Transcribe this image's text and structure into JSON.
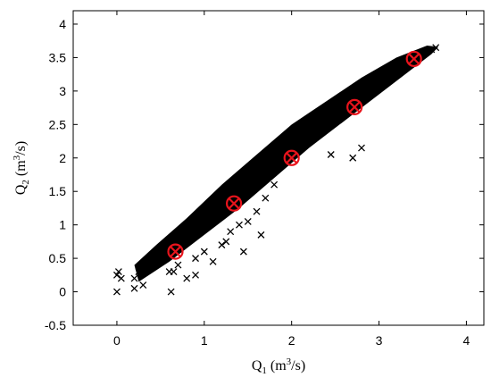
{
  "chart_data": {
    "type": "scatter",
    "title": "",
    "xlabel": {
      "main": "Q",
      "sub": "1",
      "unit_pre": " (m",
      "unit_sup": "3",
      "unit_post": "/s)"
    },
    "ylabel": {
      "main": "Q",
      "sub": "2",
      "unit_pre": " (m",
      "unit_sup": "3",
      "unit_post": "/s)"
    },
    "xlim": [
      -0.5,
      4.2
    ],
    "ylim": [
      -0.5,
      4.2
    ],
    "xticks": [
      0,
      1,
      2,
      3,
      4
    ],
    "xtick_labels": [
      "0",
      "1",
      "2",
      "3",
      "4"
    ],
    "yticks": [
      -0.5,
      0,
      0.5,
      1,
      1.5,
      2,
      2.5,
      3,
      3.5,
      4
    ],
    "ytick_labels": [
      "-0.5",
      "0",
      "0.5",
      "1",
      "1.5",
      "2",
      "2.5",
      "3",
      "3.5",
      "4"
    ],
    "grid": false,
    "legend": "none",
    "colors": {
      "cloud": "#000000",
      "highlight": "#e8141c"
    },
    "series": [
      {
        "marker": "x",
        "description_points": "dense cloud of x markers along diagonal",
        "x": [
          0.0,
          0.0,
          0.02,
          0.05,
          0.2,
          0.25,
          0.3,
          0.35,
          0.4,
          0.5,
          0.55,
          0.6,
          0.62,
          0.65,
          0.7,
          0.75,
          0.8,
          0.85,
          0.9,
          0.95,
          1.0,
          1.05,
          1.1,
          1.15,
          1.2,
          1.25,
          1.3,
          1.35,
          1.4,
          1.45,
          1.5,
          1.55,
          1.6,
          1.65,
          1.7,
          1.75,
          1.8,
          1.85,
          1.9,
          1.95,
          2.0,
          2.05,
          2.1,
          2.15,
          2.2,
          2.3,
          2.4,
          2.5,
          2.6,
          2.7,
          2.8,
          2.9,
          3.0,
          3.1,
          3.2,
          3.3,
          3.4,
          3.5,
          3.6,
          3.65,
          0.2,
          0.3,
          0.6,
          0.7,
          0.8,
          0.9,
          1.0,
          1.1,
          1.2,
          1.3,
          1.4,
          1.5,
          1.6,
          1.7,
          1.8,
          2.7,
          2.8,
          0.65,
          0.9,
          1.25,
          1.45,
          1.65,
          2.45
        ],
        "y": [
          0.0,
          0.25,
          0.3,
          0.2,
          0.05,
          0.3,
          0.35,
          0.4,
          0.45,
          0.5,
          0.55,
          0.6,
          0.0,
          0.65,
          0.7,
          0.8,
          0.85,
          0.9,
          1.0,
          1.1,
          1.15,
          1.2,
          1.3,
          1.35,
          1.4,
          1.45,
          1.5,
          1.55,
          1.6,
          1.7,
          1.75,
          1.8,
          1.85,
          1.9,
          2.0,
          2.05,
          2.1,
          2.15,
          2.2,
          2.25,
          2.3,
          2.35,
          2.4,
          2.45,
          2.5,
          2.6,
          2.65,
          2.75,
          2.85,
          2.95,
          3.0,
          3.1,
          3.2,
          3.3,
          3.35,
          3.4,
          3.5,
          3.55,
          3.62,
          3.65,
          0.2,
          0.1,
          0.3,
          0.4,
          0.2,
          0.5,
          0.6,
          0.45,
          0.7,
          0.9,
          1.0,
          1.05,
          1.2,
          1.4,
          1.6,
          2.0,
          2.15,
          0.3,
          0.25,
          0.75,
          0.6,
          0.85,
          2.05
        ]
      },
      {
        "marker": "circled-x",
        "x": [
          0.67,
          1.34,
          2.0,
          2.72,
          3.4
        ],
        "y": [
          0.6,
          1.32,
          2.0,
          2.76,
          3.48
        ]
      }
    ]
  }
}
